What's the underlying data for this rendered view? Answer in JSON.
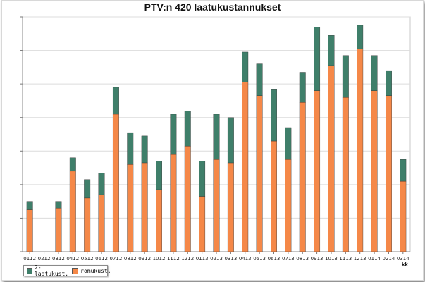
{
  "chart_data": {
    "type": "bar",
    "stacked": true,
    "title": "PTV:n  420 laatukustannukset",
    "xlabel": "kk",
    "ylabel": "",
    "categories": [
      "0112",
      "0212",
      "0312",
      "0412",
      "0512",
      "0612",
      "0712",
      "0812",
      "0912",
      "1012",
      "1112",
      "1212",
      "0113",
      "0213",
      "0313",
      "0413",
      "0513",
      "0613",
      "0713",
      "0813",
      "0913",
      "1013",
      "1113",
      "1213",
      "0114",
      "0214",
      "0314"
    ],
    "ylim": [
      0,
      14
    ],
    "grid": "horizontal",
    "legend_position": "bottom-left",
    "series": [
      {
        "name": "romukust.",
        "color": "#f58848",
        "values": [
          2.5,
          0,
          2.6,
          4.8,
          3.2,
          3.4,
          8.2,
          5.2,
          5.3,
          3.7,
          5.8,
          6.3,
          3.3,
          5.5,
          5.3,
          10.1,
          9.3,
          6.6,
          5.5,
          8.9,
          9.6,
          11.1,
          9.2,
          12.1,
          9.6,
          9.3,
          4.2
        ]
      },
      {
        "name": "2-laatukust.",
        "color": "#3f7f6a",
        "values": [
          0.5,
          0,
          0.4,
          0.8,
          1.1,
          1.3,
          1.6,
          1.9,
          1.6,
          1.7,
          2.4,
          2.1,
          2.1,
          2.7,
          2.7,
          1.8,
          1.9,
          3.1,
          1.9,
          1.8,
          3.8,
          1.8,
          2.5,
          1.4,
          2.1,
          1.5,
          1.3
        ]
      }
    ]
  }
}
